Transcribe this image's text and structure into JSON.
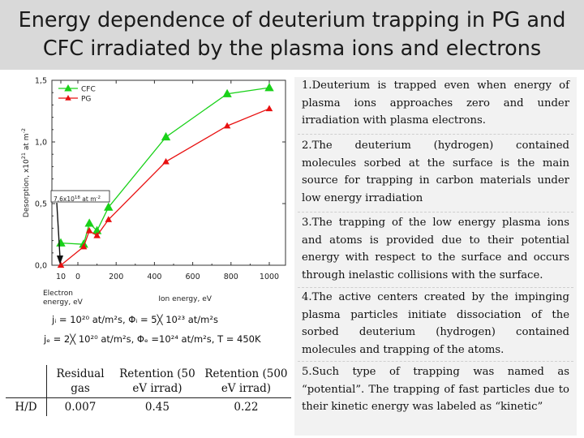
{
  "title_line1": "Energy dependence of deuterium trapping in PG and",
  "title_line2": "CFC irradiated by the plasma ions and electrons",
  "chart_data": {
    "type": "line",
    "ylabel": "Desorption, x10",
    "ylabel_exp": "21",
    "ylabel_unit": " at m",
    "ylabel_unit_exp": "-2",
    "xlabel_main": "Ion energy, eV",
    "xlabel_electron_line1": "Electron",
    "xlabel_electron_line2": "energy, eV",
    "ylim": [
      0,
      1.5
    ],
    "yticks": [
      {
        "v": 0.0,
        "label": "0,0"
      },
      {
        "v": 0.5,
        "label": "0,5"
      },
      {
        "v": 1.0,
        "label": "1,0"
      },
      {
        "v": 1.5,
        "label": "1,5"
      }
    ],
    "xticks": [
      {
        "label": "10",
        "region": "electron",
        "pos": 0
      },
      {
        "label": "0",
        "region": "ion",
        "v": 0
      },
      {
        "label": "200",
        "region": "ion",
        "v": 200
      },
      {
        "label": "400",
        "region": "ion",
        "v": 400
      },
      {
        "label": "600",
        "region": "ion",
        "v": 600
      },
      {
        "label": "800",
        "region": "ion",
        "v": 800
      },
      {
        "label": "1000",
        "region": "ion",
        "v": 1000
      }
    ],
    "electron_point_energy": 10,
    "legend_position": "top-left",
    "series": [
      {
        "name": "CFC",
        "color": "#19d119",
        "marker": "triangle-up",
        "electron_value": 0.18,
        "points": [
          [
            30,
            0.17
          ],
          [
            60,
            0.34
          ],
          [
            100,
            0.28
          ],
          [
            160,
            0.47
          ],
          [
            460,
            1.04
          ],
          [
            780,
            1.39
          ],
          [
            1000,
            1.44
          ]
        ]
      },
      {
        "name": "PG",
        "color": "#e81010",
        "marker": "triangle-up",
        "electron_value": 0.0,
        "points": [
          [
            30,
            0.15
          ],
          [
            60,
            0.28
          ],
          [
            100,
            0.24
          ],
          [
            160,
            0.37
          ],
          [
            460,
            0.84
          ],
          [
            780,
            1.13
          ],
          [
            1000,
            1.27
          ]
        ]
      }
    ],
    "annotation": {
      "text": "7,6x10",
      "exp": "18",
      "unit": " at m",
      "unit_exp": "-2"
    }
  },
  "equations": {
    "line1": "jᵢ = 10²⁰ at/m²s, Φᵢ = 5╳ 10²³ at/m²s",
    "line2": "jₑ = 2╳ 10²⁰ at/m²s, Φₑ =10²⁴ at/m²s, T = 450K"
  },
  "table": {
    "headers": [
      "",
      "Residual gas",
      "Retention (50 eV irrad)",
      "Retention (500 eV irrad)"
    ],
    "rows": [
      [
        "H/D",
        "0.007",
        "0.45",
        "0.22"
      ]
    ]
  },
  "notes": [
    "1.Deuterium is trapped even when energy of plasma ions approaches zero and under irradiation with plasma electrons.",
    "2.The deuterium (hydrogen) contained molecules sorbed at the surface is the main source for trapping in carbon materials under low energy irradiation",
    "3.The trapping of the low energy plasma ions and atoms is provided due to their potential energy with respect to the surface and occurs through inelastic collisions with the surface.",
    "4.The active centers created by the impinging plasma particles initiate dissociation of the sorbed deuterium (hydrogen) contained molecules and trapping of the atoms.",
    "5.Such type of trapping was named as “potential”. The trapping of fast particles due to their kinetic energy was labeled as “kinetic”"
  ]
}
